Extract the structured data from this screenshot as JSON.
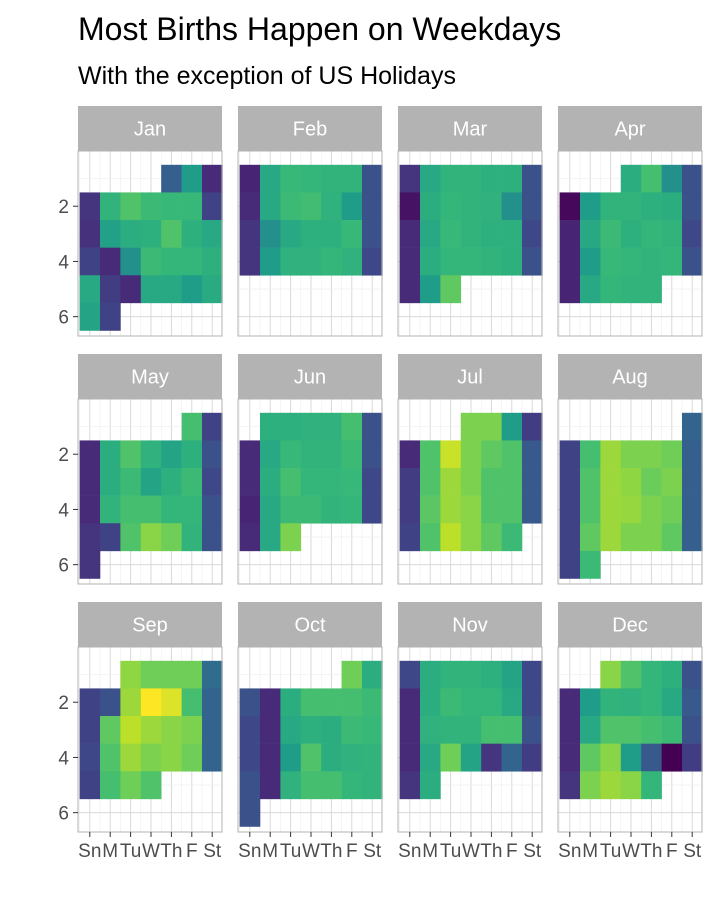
{
  "chart_data": {
    "type": "heatmap",
    "title": "Most Births Happen on Weekdays",
    "subtitle": "With the exception of US Holidays",
    "x_tick_labels": [
      "Sn",
      "M",
      "Tu",
      "W",
      "Th",
      "F",
      "St"
    ],
    "y_tick_labels": [
      "2",
      "4",
      "6"
    ],
    "y_ticks": [
      2,
      4,
      6
    ],
    "ylim": [
      0,
      6.7
    ],
    "y_reversed": true,
    "grid": true,
    "colormap": "viridis",
    "value_scale": "relative births, 0 (dark purple) to 1 (yellow)",
    "months": [
      {
        "name": "Jan",
        "start_row": 0,
        "start_col": 4,
        "values": [
          0.3,
          0.55,
          0.12,
          0.15,
          0.65,
          0.72,
          0.68,
          0.67,
          0.67,
          0.2,
          0.14,
          0.57,
          0.62,
          0.63,
          0.72,
          0.63,
          0.6,
          0.2,
          0.12,
          0.5,
          0.68,
          0.66,
          0.66,
          0.63,
          0.6,
          0.18,
          0.12,
          0.6,
          0.6,
          0.55,
          0.61,
          0.58,
          0.2
        ]
      },
      {
        "name": "Feb",
        "start_row": 0,
        "start_col": 0,
        "values": [
          0.1,
          0.6,
          0.67,
          0.66,
          0.65,
          0.65,
          0.25,
          0.12,
          0.6,
          0.68,
          0.69,
          0.64,
          0.55,
          0.25,
          0.15,
          0.5,
          0.6,
          0.63,
          0.63,
          0.67,
          0.25,
          0.15,
          0.55,
          0.64,
          0.64,
          0.66,
          0.64,
          0.22
        ]
      },
      {
        "name": "Mar",
        "start_row": 0,
        "start_col": 0,
        "values": [
          0.15,
          0.6,
          0.65,
          0.65,
          0.63,
          0.63,
          0.25,
          0.05,
          0.62,
          0.66,
          0.65,
          0.64,
          0.5,
          0.25,
          0.12,
          0.6,
          0.67,
          0.65,
          0.63,
          0.63,
          0.22,
          0.12,
          0.62,
          0.66,
          0.66,
          0.65,
          0.63,
          0.25,
          0.12,
          0.55,
          0.75
        ]
      },
      {
        "name": "Apr",
        "start_row": 0,
        "start_col": 3,
        "values": [
          0.62,
          0.7,
          0.5,
          0.25,
          0.02,
          0.55,
          0.65,
          0.65,
          0.63,
          0.62,
          0.25,
          0.1,
          0.6,
          0.68,
          0.63,
          0.66,
          0.65,
          0.22,
          0.1,
          0.55,
          0.67,
          0.66,
          0.65,
          0.66,
          0.25,
          0.1,
          0.6,
          0.66,
          0.65,
          0.65
        ]
      },
      {
        "name": "May",
        "start_row": 0,
        "start_col": 5,
        "values": [
          0.7,
          0.2,
          0.12,
          0.62,
          0.72,
          0.64,
          0.58,
          0.63,
          0.25,
          0.12,
          0.62,
          0.68,
          0.58,
          0.63,
          0.68,
          0.22,
          0.12,
          0.65,
          0.7,
          0.7,
          0.66,
          0.66,
          0.25,
          0.15,
          0.2,
          0.72,
          0.82,
          0.78,
          0.65,
          0.25,
          0.15
        ]
      },
      {
        "name": "Jun",
        "start_row": 0,
        "start_col": 1,
        "values": [
          0.63,
          0.63,
          0.64,
          0.64,
          0.7,
          0.25,
          0.12,
          0.6,
          0.67,
          0.65,
          0.65,
          0.68,
          0.25,
          0.12,
          0.62,
          0.7,
          0.66,
          0.66,
          0.67,
          0.22,
          0.1,
          0.6,
          0.68,
          0.68,
          0.65,
          0.66,
          0.22,
          0.12,
          0.6,
          0.8
        ]
      },
      {
        "name": "Jul",
        "start_row": 0,
        "start_col": 3,
        "values": [
          0.8,
          0.8,
          0.55,
          0.18,
          0.12,
          0.72,
          0.92,
          0.8,
          0.75,
          0.72,
          0.28,
          0.18,
          0.72,
          0.85,
          0.8,
          0.72,
          0.72,
          0.28,
          0.18,
          0.74,
          0.85,
          0.82,
          0.72,
          0.72,
          0.28,
          0.2,
          0.72,
          0.9,
          0.82,
          0.75,
          0.68
        ]
      },
      {
        "name": "Aug",
        "start_row": 0,
        "start_col": 6,
        "values": [
          0.32,
          0.2,
          0.7,
          0.85,
          0.8,
          0.8,
          0.78,
          0.3,
          0.2,
          0.72,
          0.85,
          0.83,
          0.77,
          0.8,
          0.3,
          0.2,
          0.72,
          0.85,
          0.84,
          0.8,
          0.78,
          0.3,
          0.2,
          0.75,
          0.85,
          0.8,
          0.8,
          0.75,
          0.3,
          0.2,
          0.68
        ]
      },
      {
        "name": "Sep",
        "start_row": 0,
        "start_col": 2,
        "values": [
          0.83,
          0.78,
          0.78,
          0.78,
          0.35,
          0.2,
          0.25,
          0.85,
          1.0,
          0.95,
          0.7,
          0.32,
          0.2,
          0.75,
          0.9,
          0.85,
          0.82,
          0.8,
          0.32,
          0.22,
          0.72,
          0.85,
          0.8,
          0.82,
          0.78,
          0.32,
          0.2,
          0.7,
          0.78,
          0.72
        ]
      },
      {
        "name": "Oct",
        "start_row": 0,
        "start_col": 5,
        "values": [
          0.78,
          0.62,
          0.25,
          0.12,
          0.62,
          0.7,
          0.7,
          0.7,
          0.68,
          0.22,
          0.12,
          0.6,
          0.63,
          0.62,
          0.68,
          0.67,
          0.22,
          0.12,
          0.55,
          0.72,
          0.62,
          0.64,
          0.65,
          0.25,
          0.12,
          0.64,
          0.7,
          0.7,
          0.66,
          0.65,
          0.25
        ]
      },
      {
        "name": "Nov",
        "start_row": 0,
        "start_col": 0,
        "values": [
          0.22,
          0.62,
          0.65,
          0.65,
          0.63,
          0.58,
          0.22,
          0.12,
          0.62,
          0.68,
          0.66,
          0.66,
          0.6,
          0.22,
          0.12,
          0.64,
          0.65,
          0.65,
          0.7,
          0.7,
          0.25,
          0.12,
          0.6,
          0.78,
          0.58,
          0.15,
          0.32,
          0.18,
          0.15,
          0.62
        ]
      },
      {
        "name": "Dec",
        "start_row": 0,
        "start_col": 2,
        "values": [
          0.82,
          0.72,
          0.66,
          0.63,
          0.25,
          0.12,
          0.55,
          0.65,
          0.64,
          0.66,
          0.6,
          0.28,
          0.12,
          0.6,
          0.72,
          0.72,
          0.7,
          0.68,
          0.25,
          0.12,
          0.75,
          0.82,
          0.55,
          0.28,
          0.0,
          0.18,
          0.15,
          0.8,
          0.85,
          0.82,
          0.66
        ]
      }
    ]
  }
}
